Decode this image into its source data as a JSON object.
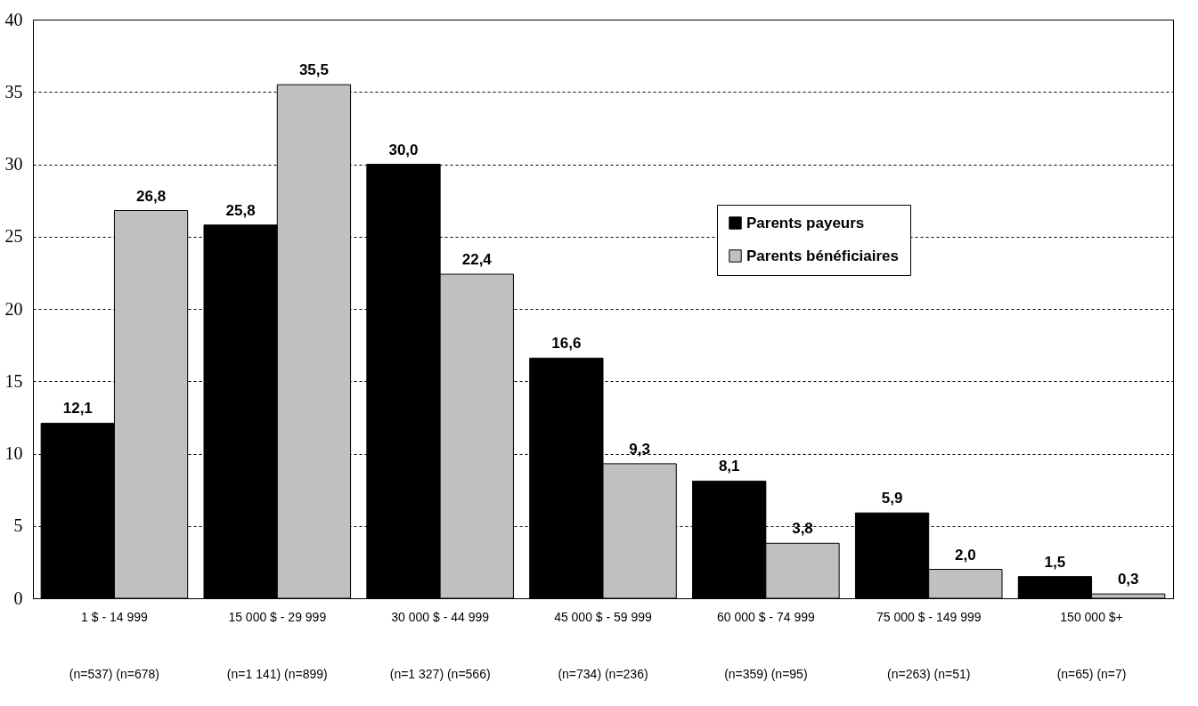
{
  "chart_data": {
    "type": "bar",
    "categories": [
      "1 $ - 14 999\n(n=537) (n=678)",
      "15 000 $ - 29 999\n(n=1 141) (n=899)",
      "30 000 $ - 44 999\n(n=1 327) (n=566)",
      "45 000 $ - 59 999\n(n=734) (n=236)",
      "60 000 $ - 74 999\n(n=359) (n=95)",
      "75 000 $ - 149 999\n(n=263) (n=51)",
      "150 000 $+\n(n=65) (n=7)"
    ],
    "series": [
      {
        "name": "Parents payeurs",
        "color": "#000000",
        "values": [
          12.1,
          25.8,
          30.0,
          16.6,
          8.1,
          5.9,
          1.5
        ],
        "value_labels": [
          "12,1",
          "25,8",
          "30,0",
          "16,6",
          "8,1",
          "5,9",
          "1,5"
        ]
      },
      {
        "name": "Parents bénéficiaires",
        "color": "#c0c0c0",
        "values": [
          26.8,
          35.5,
          22.4,
          9.3,
          3.8,
          2.0,
          0.3
        ],
        "value_labels": [
          "26,8",
          "35,5",
          "22,4",
          "9,3",
          "3,8",
          "2,0",
          "0,3"
        ]
      }
    ],
    "ylim": [
      0,
      40
    ],
    "yticks": [
      0,
      5,
      10,
      15,
      20,
      25,
      30,
      35,
      40
    ],
    "grid": "y",
    "legend": "right"
  }
}
